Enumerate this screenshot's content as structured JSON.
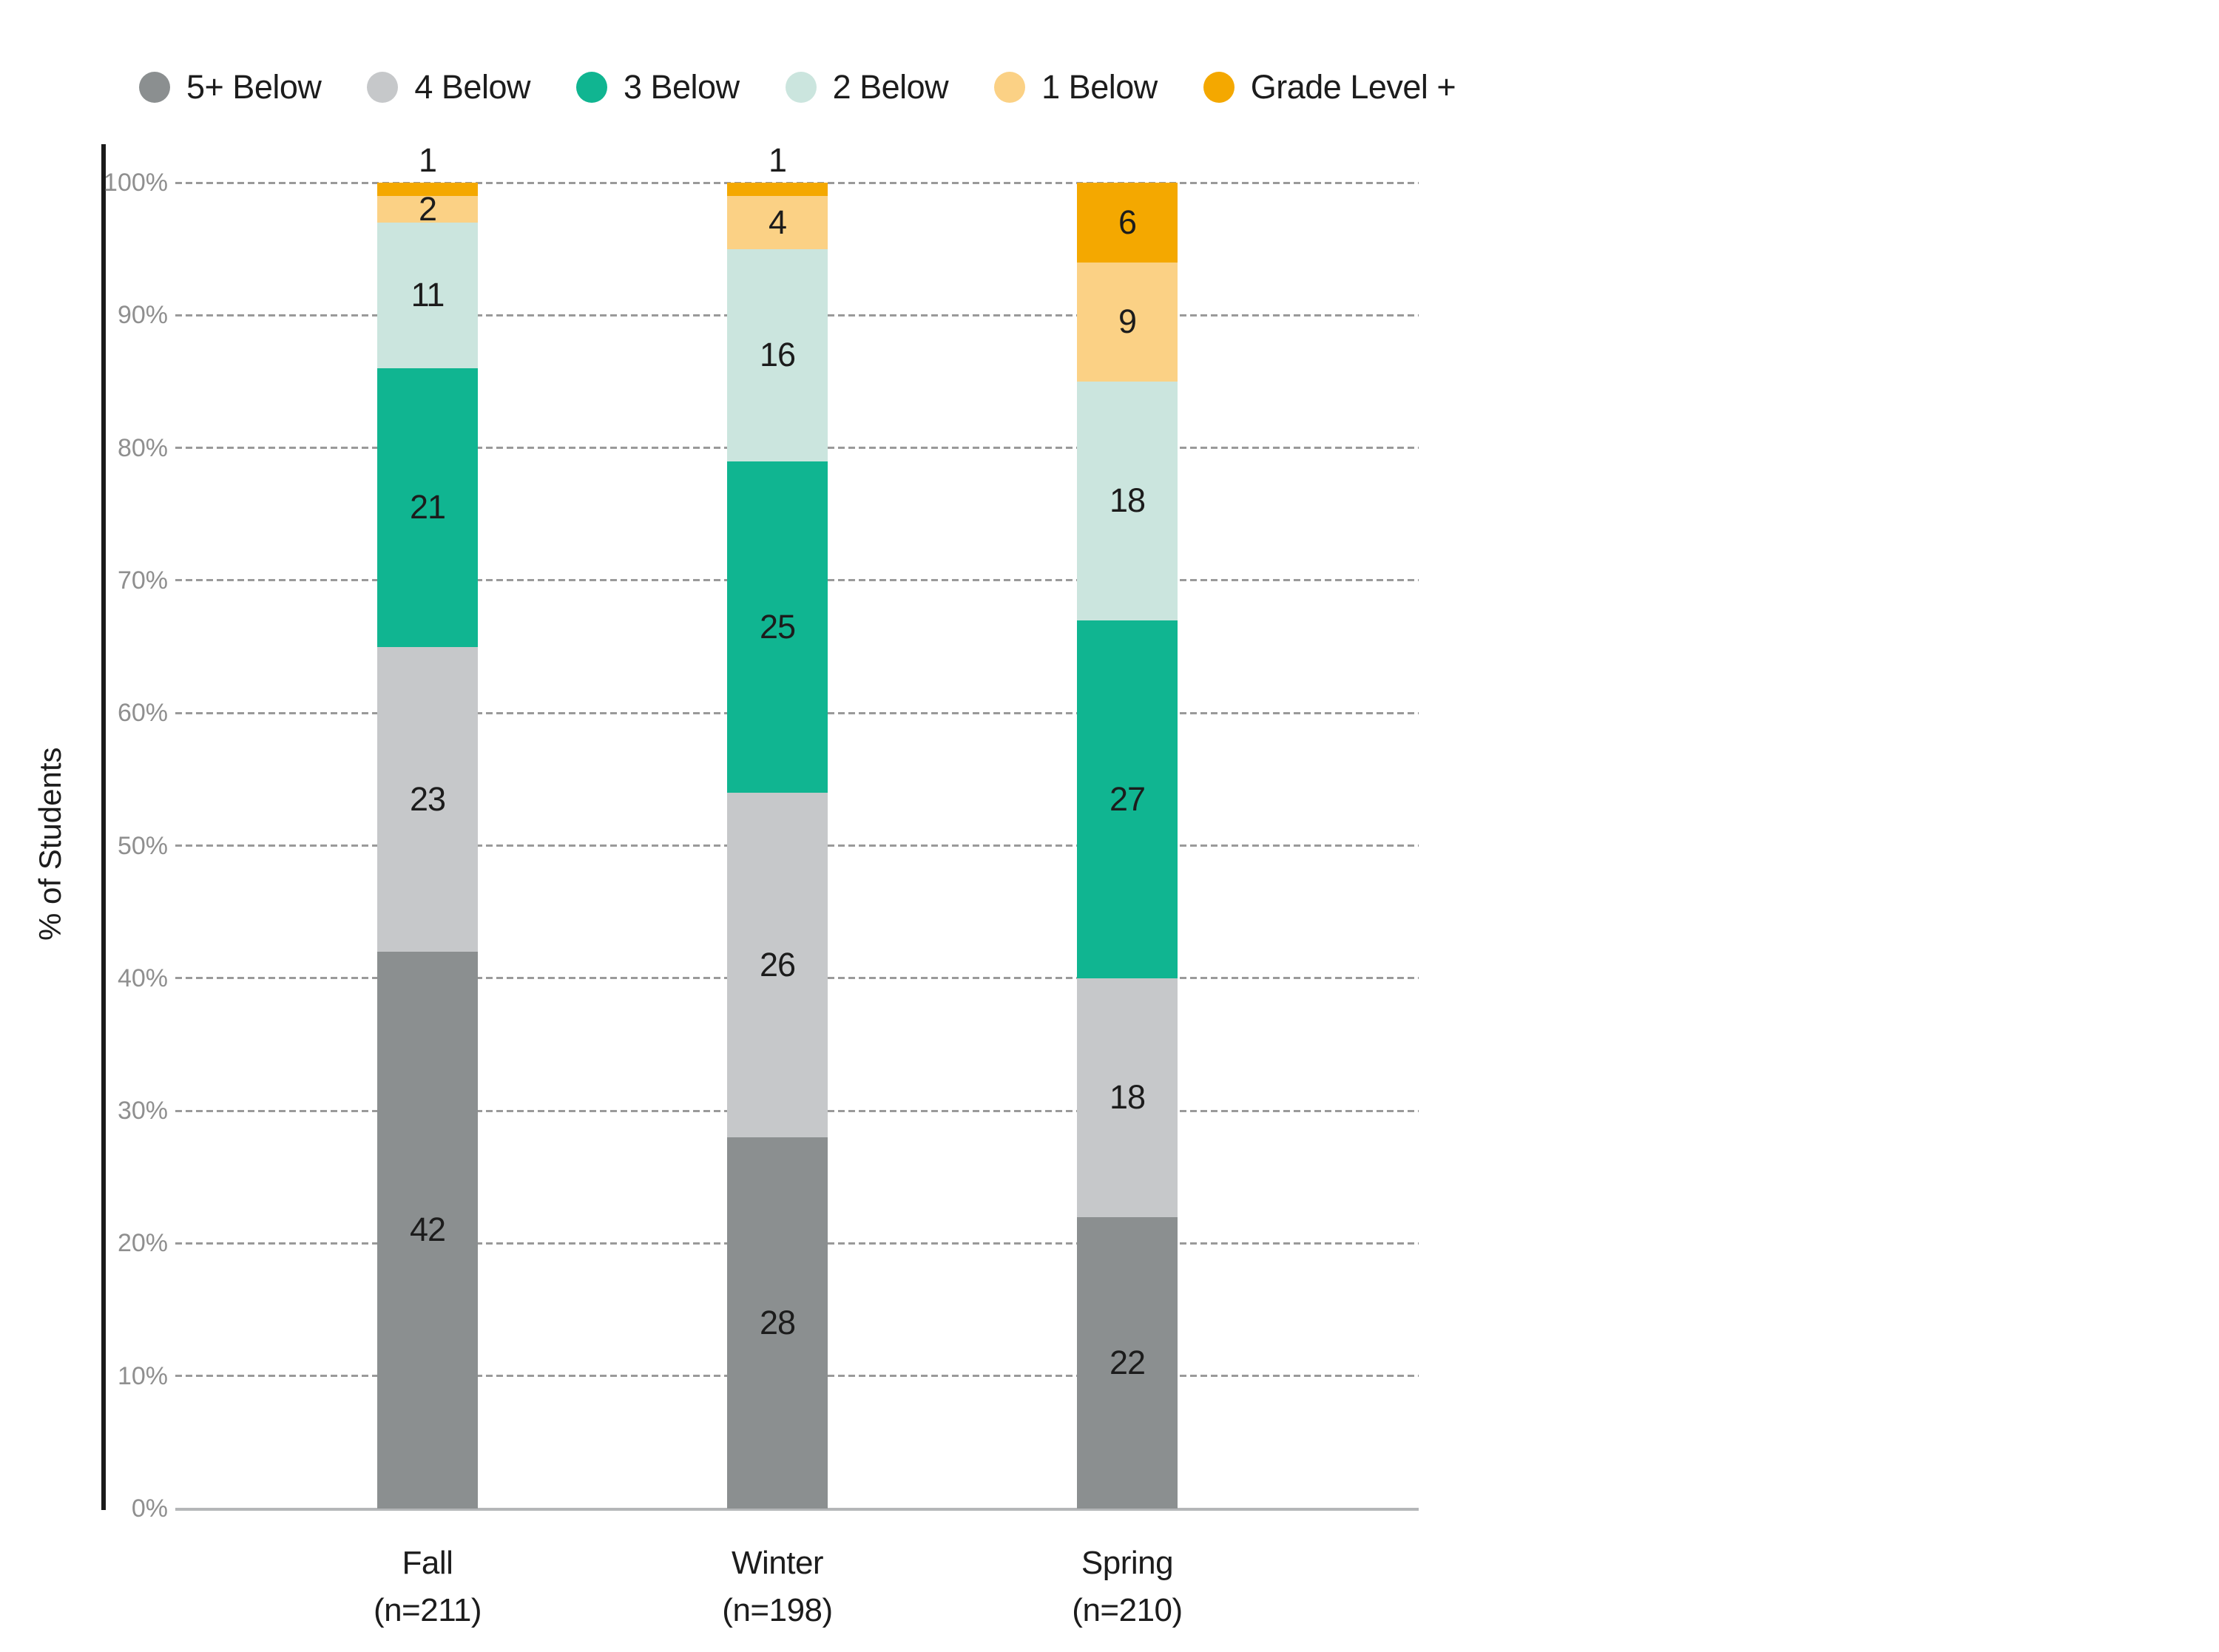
{
  "chart_data": {
    "type": "bar",
    "stacked": true,
    "title": "",
    "xlabel": "",
    "ylabel": "% of Students",
    "ylim": [
      0,
      100
    ],
    "grid": true,
    "legend_position": "top",
    "y_ticks": [
      "0%",
      "10%",
      "20%",
      "30%",
      "40%",
      "50%",
      "60%",
      "70%",
      "80%",
      "90%",
      "100%"
    ],
    "categories": [
      {
        "label": "Fall",
        "sublabel": "(n=211)"
      },
      {
        "label": "Winter",
        "sublabel": "(n=198)"
      },
      {
        "label": "Spring",
        "sublabel": "(n=210)"
      }
    ],
    "series": [
      {
        "name": "5+ Below",
        "color": "#8b8f90",
        "values": [
          42,
          28,
          22
        ]
      },
      {
        "name": "4 Below",
        "color": "#c6c8ca",
        "values": [
          23,
          26,
          18
        ]
      },
      {
        "name": "3 Below",
        "color": "#10b591",
        "values": [
          21,
          25,
          27
        ]
      },
      {
        "name": "2 Below",
        "color": "#cbe5de",
        "values": [
          11,
          16,
          18
        ]
      },
      {
        "name": "1 Below",
        "color": "#fbd185",
        "values": [
          2,
          4,
          9
        ]
      },
      {
        "name": "Grade Level +",
        "color": "#f4a800",
        "values": [
          1,
          1,
          6
        ]
      }
    ]
  }
}
